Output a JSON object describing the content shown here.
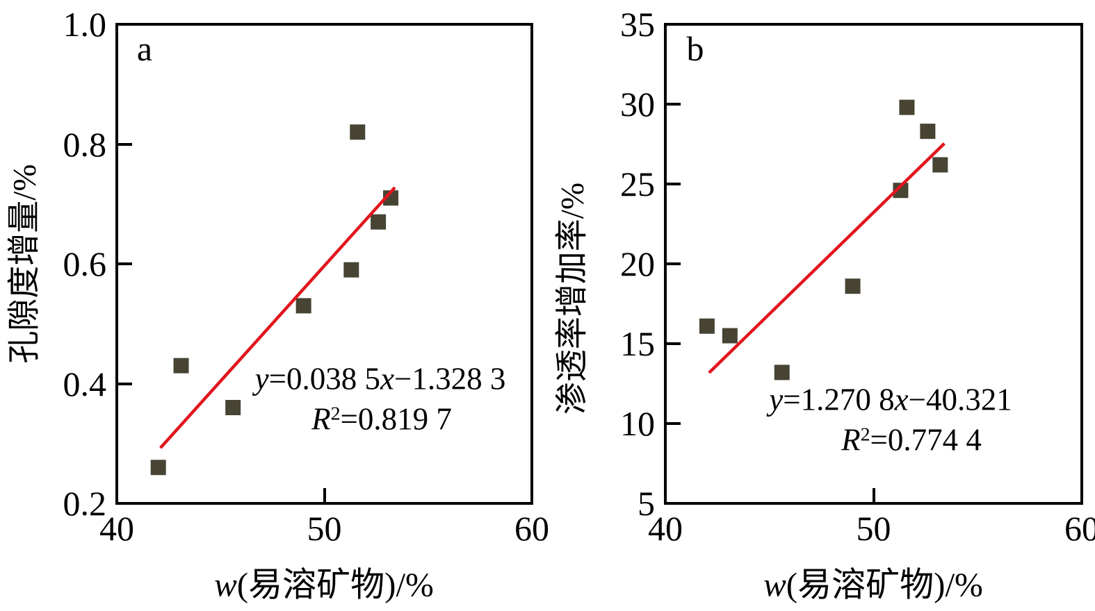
{
  "figure_colors": {
    "point_fill": "#474434",
    "trend_line": "#e1151d",
    "axis": "#000000",
    "background": "#ffffff"
  },
  "chart_data": [
    {
      "type": "scatter",
      "panel_label": "a",
      "xlabel_full": "w(易溶矿物)/%",
      "xlabel_italic_prefix": "w",
      "xlabel_rest": "(易溶矿物)/%",
      "ylabel": "孔隙度增量/%",
      "xlim": [
        40,
        60
      ],
      "ylim": [
        0.2,
        1.0
      ],
      "grid": false,
      "x_ticks": [
        {
          "value": 40,
          "label": "40"
        },
        {
          "value": 50,
          "label": "50"
        },
        {
          "value": 60,
          "label": "60"
        }
      ],
      "y_ticks": [
        {
          "value": 0.2,
          "label": "0.2"
        },
        {
          "value": 0.4,
          "label": "0.4"
        },
        {
          "value": 0.6,
          "label": "0.6"
        },
        {
          "value": 0.8,
          "label": "0.8"
        },
        {
          "value": 1.0,
          "label": "1.0"
        }
      ],
      "points_xy": [
        [
          42.0,
          0.26
        ],
        [
          43.1,
          0.43
        ],
        [
          45.6,
          0.36
        ],
        [
          49.0,
          0.53
        ],
        [
          51.3,
          0.59
        ],
        [
          51.6,
          0.82
        ],
        [
          52.6,
          0.67
        ],
        [
          53.2,
          0.71
        ]
      ],
      "trendline": {
        "slope": 0.0385,
        "intercept": -1.3283,
        "r2": 0.8197,
        "x_start": 42.1,
        "x_end": 53.4
      },
      "equation_full": "y=0.038 5x−1.328 3",
      "r2_full": "R2=0.819 7",
      "equation": {
        "y_var": "y",
        "after_y": "=0.038 5",
        "x_var": "x",
        "after_x": "−1.328 3"
      },
      "r2_line": {
        "r_var": "R",
        "sup": "2",
        "after": "=0.819 7"
      }
    },
    {
      "type": "scatter",
      "panel_label": "b",
      "xlabel_full": "w(易溶矿物)/%",
      "xlabel_italic_prefix": "w",
      "xlabel_rest": "(易溶矿物)/%",
      "ylabel": "渗透率增加率/%",
      "xlim": [
        40,
        60
      ],
      "ylim": [
        5,
        35
      ],
      "grid": false,
      "x_ticks": [
        {
          "value": 40,
          "label": "40"
        },
        {
          "value": 50,
          "label": "50"
        },
        {
          "value": 60,
          "label": "60"
        }
      ],
      "y_ticks": [
        {
          "value": 5,
          "label": "5"
        },
        {
          "value": 10,
          "label": "10"
        },
        {
          "value": 15,
          "label": "15"
        },
        {
          "value": 20,
          "label": "20"
        },
        {
          "value": 25,
          "label": "25"
        },
        {
          "value": 30,
          "label": "30"
        },
        {
          "value": 35,
          "label": "35"
        }
      ],
      "points_xy": [
        [
          42.0,
          16.1
        ],
        [
          43.1,
          15.5
        ],
        [
          45.6,
          13.2
        ],
        [
          49.0,
          18.6
        ],
        [
          51.3,
          24.6
        ],
        [
          51.6,
          29.8
        ],
        [
          52.6,
          28.3
        ],
        [
          53.2,
          26.2
        ]
      ],
      "trendline": {
        "slope": 1.2708,
        "intercept": -40.321,
        "r2": 0.7744,
        "x_start": 42.1,
        "x_end": 53.4
      },
      "equation_full": "y=1.270 8x−40.321",
      "r2_full": "R2=0.774 4",
      "equation": {
        "y_var": "y",
        "after_y": "=1.270 8",
        "x_var": "x",
        "after_x": "−40.321"
      },
      "r2_line": {
        "r_var": "R",
        "sup": "2",
        "after": "=0.774 4"
      }
    }
  ]
}
